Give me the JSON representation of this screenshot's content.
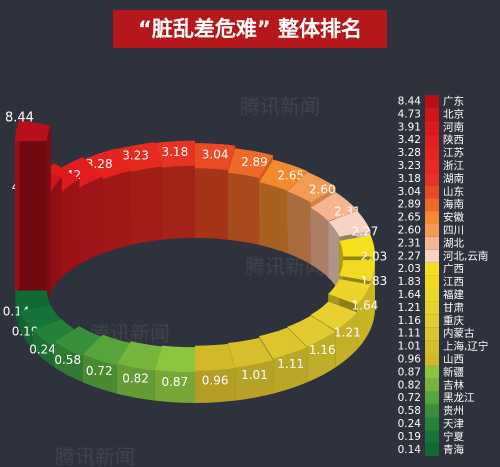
{
  "chart_data": {
    "type": "ring3d",
    "title": "“脏乱差危难” 整体排名",
    "watermark": "腾讯新闻",
    "categories": [
      "广东",
      "北京",
      "河南",
      "陕西",
      "江苏",
      "浙江",
      "湖南",
      "山东",
      "海南",
      "安徽",
      "四川",
      "湖北",
      "河北,云南",
      "广西",
      "江西",
      "福建",
      "甘肃",
      "重庆",
      "内蒙古",
      "上海,辽宁",
      "山西",
      "新疆",
      "吉林",
      "黑龙江",
      "贵州",
      "天津",
      "宁夏",
      "青海"
    ],
    "values": [
      8.44,
      4.73,
      3.91,
      3.42,
      3.28,
      3.23,
      3.18,
      3.04,
      2.89,
      2.65,
      2.6,
      2.31,
      2.27,
      2.03,
      1.83,
      1.64,
      1.21,
      1.16,
      1.11,
      1.01,
      0.96,
      0.87,
      0.82,
      0.72,
      0.58,
      0.24,
      0.19,
      0.14
    ],
    "value_labels": [
      "8.44",
      "4.73",
      "3.91",
      "3.42",
      "3.28",
      "3.23",
      "3.18",
      "3.04",
      "2.89",
      "2.65",
      "2.60",
      "2.31",
      "2.27",
      "2.03",
      "1.83",
      "1.64",
      "1.21",
      "1.16",
      "1.11",
      "1.01",
      "0.96",
      "0.87",
      "0.82",
      "0.72",
      "0.58",
      "0.24",
      "0.19",
      "0.14"
    ],
    "colors": [
      "#b8101a",
      "#cf161d",
      "#df1a1c",
      "#e31d1f",
      "#e5231f",
      "#e62a20",
      "#e83322",
      "#ec4a24",
      "#ef6a28",
      "#f28a2e",
      "#f39a55",
      "#f6b48f",
      "#f8d2c2",
      "#f4e01c",
      "#f0da22",
      "#ecd52a",
      "#e7d030",
      "#e2cb30",
      "#dcc52e",
      "#d6bf2c",
      "#d2b92a",
      "#8cc63f",
      "#74b63d",
      "#56a43a",
      "#38913a",
      "#24813a",
      "#177438",
      "#0f6a34"
    ]
  }
}
